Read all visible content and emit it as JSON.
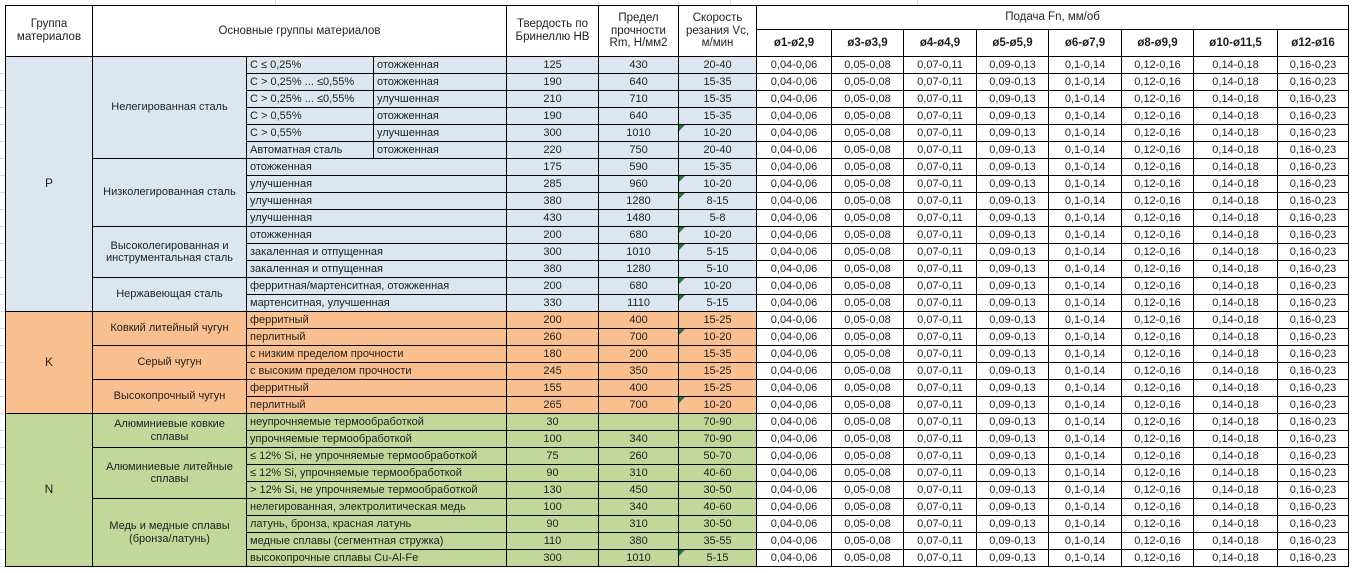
{
  "header": {
    "col_group": "Группа материалов",
    "col_main_groups": "Основные группы материалов",
    "col_hardness": "Твердость по Бринеллю HB",
    "col_strength": "Предел прочности Rm, Н/мм2",
    "col_speed": "Скорость резания Vc, м/мин",
    "feed_title": "Подача Fn, мм/об",
    "feed_cols": [
      "ø1-ø2,9",
      "ø3-ø3,9",
      "ø4-ø4,9",
      "ø5-ø5,9",
      "ø6-ø7,9",
      "ø8-ø9,9",
      "ø10-ø11,5",
      "ø12-ø16"
    ]
  },
  "colors": {
    "group_p_fill": "#DCE6F1",
    "group_k_fill": "#FABF8F",
    "group_n_fill": "#C4D79B",
    "feed_fill": "#FFFFFF",
    "border": "#000000",
    "flag_marker": "#1E7B3C"
  },
  "feed_values": [
    "0,04-0,06",
    "0,05-0,08",
    "0,07-0,11",
    "0,09-0,13",
    "0,1-0,14",
    "0,12-0,16",
    "0,14-0,18",
    "0,16-0,23"
  ],
  "groups": [
    {
      "code": "P",
      "fill": "#DCE6F1",
      "subgroups": [
        {
          "name": "Нелегированная сталь",
          "rows": [
            {
              "c1": "С ≤ 0,25%",
              "c2": "отожженная",
              "hb": "125",
              "rm": "430",
              "vc": "20-40",
              "flag": false
            },
            {
              "c1": "С > 0,25% ... ≤0,55%",
              "c2": "отожженная",
              "hb": "190",
              "rm": "640",
              "vc": "15-35",
              "flag": false
            },
            {
              "c1": "С > 0,25% ... ≤0,55%",
              "c2": "улучшенная",
              "hb": "210",
              "rm": "710",
              "vc": "15-35",
              "flag": false
            },
            {
              "c1": "С > 0,55%",
              "c2": "отожженная",
              "hb": "190",
              "rm": "640",
              "vc": "15-35",
              "flag": false
            },
            {
              "c1": "С > 0,55%",
              "c2": "улучшенная",
              "hb": "300",
              "rm": "1010",
              "vc": "10-20",
              "flag": true
            },
            {
              "c1": "Автоматная сталь",
              "c2": "отожженная",
              "hb": "220",
              "rm": "750",
              "vc": "20-40",
              "flag": false
            }
          ]
        },
        {
          "name": "Низколегированная сталь",
          "rows": [
            {
              "c1": "отожженная",
              "c2": null,
              "hb": "175",
              "rm": "590",
              "vc": "15-35",
              "flag": false
            },
            {
              "c1": "улучшенная",
              "c2": null,
              "hb": "285",
              "rm": "960",
              "vc": "10-20",
              "flag": true
            },
            {
              "c1": "улучшенная",
              "c2": null,
              "hb": "380",
              "rm": "1280",
              "vc": "8-15",
              "flag": true
            },
            {
              "c1": "улучшенная",
              "c2": null,
              "hb": "430",
              "rm": "1480",
              "vc": "5-8",
              "flag": false
            }
          ]
        },
        {
          "name": "Высоколегированная и инструментальная сталь",
          "rows": [
            {
              "c1": "отожженная",
              "c2": null,
              "hb": "200",
              "rm": "680",
              "vc": "10-20",
              "flag": true
            },
            {
              "c1": "закаленная и отпущенная",
              "c2": null,
              "hb": "300",
              "rm": "1010",
              "vc": "5-15",
              "flag": true
            },
            {
              "c1": "закаленная и отпущенная",
              "c2": null,
              "hb": "380",
              "rm": "1280",
              "vc": "5-10",
              "flag": false
            }
          ]
        },
        {
          "name": "Нержавеющая сталь",
          "rows": [
            {
              "c1": "ферритная/мартенситная, отожженная",
              "c2": null,
              "hb": "200",
              "rm": "680",
              "vc": "10-20",
              "flag": true
            },
            {
              "c1": "мартенситная, улучшенная",
              "c2": null,
              "hb": "330",
              "rm": "1110",
              "vc": "5-15",
              "flag": true
            }
          ]
        }
      ]
    },
    {
      "code": "K",
      "fill": "#FABF8F",
      "subgroups": [
        {
          "name": "Ковкий литейный чугун",
          "rows": [
            {
              "c1": "ферритный",
              "c2": null,
              "hb": "200",
              "rm": "400",
              "vc": "15-25",
              "flag": false
            },
            {
              "c1": "перлитный",
              "c2": null,
              "hb": "260",
              "rm": "700",
              "vc": "10-20",
              "flag": true
            }
          ]
        },
        {
          "name": "Серый чугун",
          "rows": [
            {
              "c1": "с низким пределом прочности",
              "c2": null,
              "hb": "180",
              "rm": "200",
              "vc": "15-35",
              "flag": false
            },
            {
              "c1": "с высоким пределом прочности",
              "c2": null,
              "hb": "245",
              "rm": "350",
              "vc": "15-25",
              "flag": false
            }
          ]
        },
        {
          "name": "Высокопрочный чугун",
          "rows": [
            {
              "c1": "ферритный",
              "c2": null,
              "hb": "155",
              "rm": "400",
              "vc": "15-25",
              "flag": false
            },
            {
              "c1": "перлитный",
              "c2": null,
              "hb": "265",
              "rm": "700",
              "vc": "10-20",
              "flag": true
            }
          ]
        }
      ]
    },
    {
      "code": "N",
      "fill": "#C4D79B",
      "subgroups": [
        {
          "name": "Алюминиевые ковкие сплавы",
          "rows": [
            {
              "c1": "неупрочняемые термообработкой",
              "c2": null,
              "hb": "30",
              "rm": "",
              "vc": "70-90",
              "flag": false
            },
            {
              "c1": "упрочняемые термообработкой",
              "c2": null,
              "hb": "100",
              "rm": "340",
              "vc": "70-90",
              "flag": false
            }
          ]
        },
        {
          "name": "Алюминиевые литейные сплавы",
          "rows": [
            {
              "c1": "≤ 12% Si, не упрочняемые термообработкой",
              "c2": null,
              "hb": "75",
              "rm": "260",
              "vc": "50-70",
              "flag": false
            },
            {
              "c1": "≤ 12% Si, упрочняемые термообработкой",
              "c2": null,
              "hb": "90",
              "rm": "310",
              "vc": "40-60",
              "flag": false
            },
            {
              "c1": "> 12% Si, не упрочняемые термообработкой",
              "c2": null,
              "hb": "130",
              "rm": "450",
              "vc": "30-50",
              "flag": false
            }
          ]
        },
        {
          "name": "Медь и медные сплавы (бронза/латунь)",
          "rows": [
            {
              "c1": "нелегированная, электролитическая медь",
              "c2": null,
              "hb": "100",
              "rm": "340",
              "vc": "40-60",
              "flag": false
            },
            {
              "c1": "латунь, бронза, красная латунь",
              "c2": null,
              "hb": "90",
              "rm": "310",
              "vc": "30-50",
              "flag": false
            },
            {
              "c1": "медные сплавы (сегментная стружка)",
              "c2": null,
              "hb": "110",
              "rm": "380",
              "vc": "35-55",
              "flag": false
            },
            {
              "c1": "высокопрочные сплавы Cu-Al-Fe",
              "c2": null,
              "hb": "300",
              "rm": "1010",
              "vc": "5-15",
              "flag": true
            }
          ]
        }
      ]
    }
  ]
}
